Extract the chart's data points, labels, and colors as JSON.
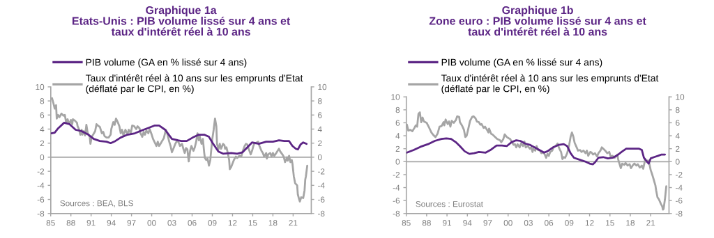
{
  "chart_data": [
    {
      "type": "line",
      "title": "Graphique 1a\nEtats-Unis : PIB volume lissé sur 4 ans et\ntaux d'intérêt réel à 10 ans",
      "annotations": [
        "Sources : BEA, BLS"
      ],
      "xlim": [
        1985,
        2023.7
      ],
      "xticks": [
        {
          "value": 1985,
          "label": "85"
        },
        {
          "value": 1988,
          "label": "88"
        },
        {
          "value": 1991,
          "label": "91"
        },
        {
          "value": 1994,
          "label": "94"
        },
        {
          "value": 1997,
          "label": "97"
        },
        {
          "value": 2000,
          "label": "00"
        },
        {
          "value": 2003,
          "label": "03"
        },
        {
          "value": 2006,
          "label": "06"
        },
        {
          "value": 2009,
          "label": "09"
        },
        {
          "value": 2012,
          "label": "12"
        },
        {
          "value": 2015,
          "label": "15"
        },
        {
          "value": 2018,
          "label": "18"
        },
        {
          "value": 2021,
          "label": "21"
        }
      ],
      "ylim": [
        -8,
        10
      ],
      "yticks": [
        -8,
        -6,
        -4,
        -2,
        0,
        2,
        4,
        6,
        8,
        10
      ],
      "y2lim": [
        -8,
        10
      ],
      "y2ticks": [
        -8,
        -6,
        -4,
        -2,
        0,
        2,
        4,
        6,
        8,
        10
      ],
      "ref_lines": [
        {
          "axis": "y",
          "value": 0,
          "color": "#a6a6a6"
        }
      ],
      "legend": "top left",
      "series": [
        {
          "name": "PIB volume (GA en % lissé sur 4 ans)",
          "color": "#5c2585",
          "x": [
            1985.1,
            1985.6,
            1986.1,
            1987.0,
            1987.8,
            1988.7,
            1989.6,
            1990.6,
            1991.4,
            1992.3,
            1993.3,
            1993.9,
            1994.6,
            1995.4,
            1996.4,
            1997.5,
            1998.5,
            1999.6,
            2000.4,
            2001.1,
            2002.0,
            2003.0,
            2004.4,
            2005.2,
            2006.1,
            2007.0,
            2007.8,
            2008.5,
            2009.0,
            2009.9,
            2010.6,
            2011.8,
            2012.7,
            2013.5,
            2014.4,
            2014.9,
            2015.9,
            2017.0,
            2018.0,
            2018.9,
            2019.7,
            2020.4,
            2020.9,
            2021.4,
            2021.7,
            2022.1,
            2022.5,
            2023.0
          ],
          "values": [
            3.4,
            3.5,
            4.1,
            4.9,
            4.7,
            3.9,
            3.7,
            3.2,
            2.6,
            2.3,
            2.2,
            2.0,
            2.3,
            2.8,
            3.2,
            3.4,
            3.8,
            4.2,
            4.5,
            4.5,
            3.9,
            2.6,
            2.3,
            2.3,
            2.8,
            3.2,
            3.2,
            2.9,
            2.1,
            0.8,
            0.5,
            0.6,
            0.5,
            0.7,
            1.6,
            2.1,
            1.9,
            2.2,
            2.2,
            2.4,
            2.3,
            2.3,
            1.6,
            1.2,
            1.1,
            1.8,
            2.1,
            1.9
          ]
        },
        {
          "name": "Taux d'intérêt réel à 10 ans sur les emprunts d'Etat\n(déflaté par le CPI, en %)",
          "color": "#a5a5a5",
          "axis": "y2",
          "x": [
            1985.1,
            1985.2,
            1985.4,
            1985.6,
            1985.8,
            1985.9,
            1986.1,
            1986.3,
            1986.6,
            1986.9,
            1987.1,
            1987.3,
            1987.5,
            1987.8,
            1988.0,
            1988.2,
            1988.3,
            1988.6,
            1988.9,
            1989.0,
            1989.2,
            1989.4,
            1989.6,
            1989.7,
            1989.9,
            1990.1,
            1990.3,
            1990.5,
            1990.8,
            1990.9,
            1991.1,
            1991.3,
            1991.6,
            1991.8,
            1992.0,
            1992.3,
            1992.6,
            1992.8,
            1993.0,
            1993.3,
            1993.6,
            1993.9,
            1994.0,
            1994.3,
            1994.5,
            1994.7,
            1995.0,
            1995.2,
            1995.4,
            1995.6,
            1995.8,
            1996.1,
            1996.4,
            1996.6,
            1996.9,
            1997.1,
            1997.4,
            1997.7,
            1997.9,
            1998.2,
            1998.3,
            1998.6,
            1998.8,
            1999.0,
            1999.2,
            1999.5,
            1999.7,
            2000.0,
            2000.2,
            2000.4,
            2000.7,
            2000.9,
            2001.1,
            2001.3,
            2001.6,
            2001.8,
            2002.0,
            2002.1,
            2002.3,
            2002.6,
            2002.8,
            2003.0,
            2003.3,
            2003.5,
            2003.8,
            2004.0,
            2004.2,
            2004.5,
            2004.7,
            2004.9,
            2005.1,
            2005.3,
            2005.5,
            2005.7,
            2005.9,
            2006.2,
            2006.4,
            2006.6,
            2006.8,
            2007.0,
            2007.1,
            2007.4,
            2007.6,
            2007.8,
            2007.9,
            2008.1,
            2008.3,
            2008.5,
            2008.7,
            2008.9,
            2009.0,
            2009.2,
            2009.4,
            2009.6,
            2009.7,
            2009.9,
            2010.1,
            2010.3,
            2010.6,
            2010.8,
            2010.9,
            2011.1,
            2011.3,
            2011.5,
            2011.6,
            2011.8,
            2012.0,
            2012.2,
            2012.5,
            2012.7,
            2013.0,
            2013.3,
            2013.5,
            2013.8,
            2014.0,
            2014.2,
            2014.4,
            2014.7,
            2014.9,
            2015.1,
            2015.2,
            2015.6,
            2015.8,
            2016.0,
            2016.3,
            2016.5,
            2016.7,
            2017.0,
            2017.1,
            2017.3,
            2017.6,
            2017.8,
            2018.0,
            2018.2,
            2018.5,
            2018.7,
            2018.9,
            2019.1,
            2019.4,
            2019.6,
            2019.8,
            2020.1,
            2020.2,
            2020.4,
            2020.6,
            2020.8,
            2020.9,
            2021.1,
            2021.3,
            2021.6,
            2021.7,
            2021.9,
            2022.0,
            2022.2,
            2022.5,
            2022.7,
            2022.8,
            2022.9,
            2023.1
          ],
          "values": [
            8.3,
            8.4,
            7.7,
            6.9,
            7.4,
            5.5,
            6.0,
            5.7,
            6.2,
            5.9,
            6.0,
            4.9,
            5.4,
            4.7,
            5.3,
            4.7,
            5.4,
            5.2,
            4.9,
            4.4,
            4.0,
            3.2,
            3.9,
            3.2,
            3.7,
            3.1,
            4.6,
            3.4,
            2.9,
            1.9,
            2.9,
            3.2,
            3.7,
            4.7,
            4.5,
            4.3,
            3.4,
            3.6,
            3.0,
            2.8,
            2.8,
            3.2,
            4.0,
            5.0,
            4.6,
            5.5,
            4.9,
            4.4,
            3.4,
            3.9,
            3.1,
            3.9,
            3.3,
            3.9,
            3.4,
            4.5,
            4.4,
            4.0,
            4.4,
            4.1,
            3.5,
            2.9,
            3.6,
            3.2,
            3.8,
            3.4,
            4.0,
            3.2,
            2.6,
            2.2,
            1.6,
            2.2,
            1.6,
            1.9,
            2.4,
            2.7,
            3.5,
            3.9,
            3.4,
            2.2,
            1.6,
            0.7,
            1.4,
            1.9,
            2.4,
            2.1,
            1.6,
            1.9,
            1.2,
            0.6,
            1.3,
            1.1,
            -0.6,
            0.9,
            1.6,
            0.9,
            1.4,
            2.2,
            3.4,
            2.4,
            3.1,
            1.9,
            2.6,
            0.6,
            -0.1,
            -0.4,
            -0.2,
            -1.2,
            -0.4,
            1.6,
            2.6,
            3.9,
            5.5,
            4.4,
            1.9,
            1.1,
            1.9,
            1.2,
            1.9,
            1.7,
            1.2,
            1.4,
            0.6,
            -0.4,
            -1.7,
            -1.4,
            -0.9,
            -0.4,
            0.1,
            -0.1,
            0.2,
            0.1,
            0.8,
            1.6,
            1.9,
            1.8,
            1.2,
            0.4,
            0.9,
            1.6,
            1.9,
            2.1,
            2.2,
            1.6,
            0.9,
            0.6,
            0.1,
            0.6,
            -0.2,
            0.4,
            0.6,
            0.1,
            0.6,
            0.2,
            0.6,
            0.9,
            1.2,
            0.8,
            0.4,
            0.1,
            -0.7,
            0.0,
            -0.5,
            0.2,
            -0.7,
            -0.4,
            -0.9,
            -2.7,
            -3.7,
            -4.0,
            -5.3,
            -6.0,
            -6.3,
            -5.7,
            -5.8,
            -4.7,
            -3.2,
            -2.7,
            -1.2
          ]
        }
      ]
    },
    {
      "type": "line",
      "title": "Graphique 1b\nZone euro : PIB volume lissé sur 4 ans et\ntaux d'intérêt réel à 10 ans",
      "annotations": [
        "Sources : Eurostat"
      ],
      "xlim": [
        1985,
        2023.7
      ],
      "xticks": [
        {
          "value": 1985,
          "label": "85"
        },
        {
          "value": 1988,
          "label": "88"
        },
        {
          "value": 1991,
          "label": "91"
        },
        {
          "value": 1994,
          "label": "94"
        },
        {
          "value": 1997,
          "label": "97"
        },
        {
          "value": 2000,
          "label": "00"
        },
        {
          "value": 2003,
          "label": "03"
        },
        {
          "value": 2006,
          "label": "06"
        },
        {
          "value": 2009,
          "label": "09"
        },
        {
          "value": 2012,
          "label": "12"
        },
        {
          "value": 2015,
          "label": "15"
        },
        {
          "value": 2018,
          "label": "18"
        },
        {
          "value": 2021,
          "label": "21"
        }
      ],
      "ylim": [
        -8,
        10
      ],
      "yticks": [
        -8,
        -6,
        -4,
        -2,
        0,
        2,
        4,
        6,
        8,
        10
      ],
      "y2lim": [
        -8,
        10
      ],
      "y2ticks": [
        -8,
        -6,
        -4,
        -2,
        0,
        2,
        4,
        6,
        8,
        10
      ],
      "ref_lines": [
        {
          "axis": "y",
          "value": 0,
          "color": "#a6a6a6"
        }
      ],
      "legend": "top left",
      "series": [
        {
          "name": "PIB volume (GA en % lissé sur 4 ans)",
          "color": "#5c2585",
          "x": [
            1985.1,
            1986.1,
            1987.1,
            1988.2,
            1989.2,
            1990.2,
            1990.9,
            1991.6,
            1992.3,
            1992.9,
            1993.6,
            1994.3,
            1995.0,
            1995.7,
            1996.7,
            1997.4,
            1998.3,
            1999.1,
            1999.8,
            2000.5,
            2001.2,
            2001.8,
            2002.5,
            2003.2,
            2003.9,
            2004.6,
            2005.3,
            2005.8,
            2006.6,
            2007.5,
            2008.2,
            2008.7,
            2009.2,
            2009.7,
            2010.8,
            2011.4,
            2012.0,
            2012.5,
            2012.8,
            2013.3,
            2014.0,
            2014.7,
            2015.4,
            2016.1,
            2016.7,
            2017.4,
            2018.3,
            2019.3,
            2019.7,
            2020.0,
            2020.3,
            2020.7,
            2021.0,
            2021.5,
            2022.1,
            2022.6,
            2023.1
          ],
          "values": [
            1.4,
            1.8,
            2.3,
            2.7,
            3.2,
            3.5,
            3.6,
            3.5,
            3.0,
            2.4,
            1.6,
            1.2,
            1.3,
            1.5,
            1.4,
            1.8,
            2.5,
            2.5,
            2.4,
            3.0,
            3.3,
            3.2,
            2.8,
            2.6,
            2.2,
            1.8,
            1.4,
            1.6,
            2.2,
            2.6,
            2.7,
            2.4,
            1.3,
            0.6,
            0.2,
            0.0,
            -0.3,
            -0.4,
            -0.1,
            0.6,
            0.7,
            0.5,
            0.6,
            1.0,
            1.5,
            2.0,
            2.0,
            2.0,
            1.8,
            0.6,
            0.2,
            -0.3,
            0.5,
            0.7,
            0.9,
            1.1,
            1.1
          ]
        },
        {
          "name": "Taux d'intérêt réel à 10 ans sur les emprunts d'Etat\n(déflaté par le CPI, en %)",
          "color": "#a5a5a5",
          "axis": "y2",
          "x": [
            1985.1,
            1985.3,
            1985.6,
            1985.9,
            1986.2,
            1986.4,
            1986.6,
            1986.8,
            1987.0,
            1987.2,
            1987.4,
            1987.6,
            1988.0,
            1988.3,
            1988.7,
            1989.0,
            1989.3,
            1989.6,
            1989.9,
            1990.2,
            1990.5,
            1990.6,
            1990.8,
            1991.1,
            1991.3,
            1991.5,
            1991.7,
            1992.0,
            1992.3,
            1992.5,
            1992.8,
            1992.9,
            1993.2,
            1993.5,
            1993.7,
            1993.9,
            1994.1,
            1994.4,
            1994.7,
            1994.9,
            1995.2,
            1995.4,
            1995.7,
            1995.9,
            1996.1,
            1996.4,
            1996.6,
            1996.9,
            1997.1,
            1997.2,
            1997.5,
            1997.7,
            1998.1,
            1998.4,
            1998.8,
            1999.0,
            1999.3,
            1999.5,
            1999.8,
            2000.1,
            2000.3,
            2000.5,
            2000.8,
            2001.0,
            2001.2,
            2001.4,
            2001.7,
            2001.9,
            2002.2,
            2002.4,
            2002.6,
            2002.9,
            2003.2,
            2003.4,
            2003.6,
            2003.7,
            2004.0,
            2004.2,
            2004.4,
            2004.7,
            2004.9,
            2005.2,
            2005.4,
            2005.6,
            2005.8,
            2006.0,
            2006.2,
            2006.5,
            2006.7,
            2007.0,
            2007.3,
            2007.4,
            2007.6,
            2007.8,
            2008.0,
            2008.2,
            2008.4,
            2008.7,
            2009.0,
            2009.2,
            2009.4,
            2009.6,
            2009.8,
            2010.1,
            2010.3,
            2010.6,
            2010.8,
            2011.1,
            2011.4,
            2011.6,
            2011.8,
            2012.1,
            2012.3,
            2012.5,
            2012.8,
            2013.1,
            2013.3,
            2013.6,
            2013.8,
            2014.1,
            2014.3,
            2014.6,
            2014.9,
            2015.1,
            2015.4,
            2015.7,
            2016.1,
            2016.2,
            2016.4,
            2016.6,
            2016.8,
            2017.1,
            2017.3,
            2017.6,
            2017.9,
            2018.1,
            2018.4,
            2018.6,
            2018.9,
            2019.1,
            2019.4,
            2019.7,
            2019.9,
            2020.2,
            2020.4,
            2020.6,
            2020.8,
            2021.0,
            2021.2,
            2021.4,
            2021.7,
            2021.8,
            2022.0,
            2022.2,
            2022.5,
            2022.7,
            2022.8,
            2022.9,
            2023.1,
            2023.3
          ],
          "values": [
            5.7,
            4.8,
            4.9,
            4.7,
            5.2,
            5.6,
            5.4,
            7.4,
            7.6,
            6.1,
            6.8,
            6.2,
            6.0,
            5.4,
            4.5,
            4.1,
            3.8,
            4.3,
            5.4,
            5.5,
            6.1,
            5.6,
            6.5,
            5.8,
            6.2,
            5.4,
            6.3,
            6.0,
            6.4,
            7.0,
            6.9,
            6.1,
            5.6,
            4.9,
            3.8,
            4.0,
            4.9,
            6.3,
            6.9,
            7.0,
            6.7,
            6.2,
            6.1,
            5.7,
            5.8,
            5.2,
            5.4,
            4.9,
            4.5,
            5.1,
            4.3,
            4.2,
            3.8,
            3.5,
            3.3,
            3.0,
            3.5,
            4.2,
            3.8,
            3.6,
            3.5,
            3.1,
            2.6,
            2.7,
            2.2,
            2.7,
            2.2,
            2.8,
            2.4,
            3.1,
            2.2,
            2.4,
            2.0,
            2.2,
            1.5,
            2.0,
            1.7,
            2.4,
            1.8,
            1.7,
            1.3,
            1.4,
            1.1,
            0.6,
            1.2,
            0.9,
            1.5,
            1.7,
            2.2,
            2.4,
            2.8,
            2.4,
            1.9,
            1.5,
            0.4,
            0.7,
            0.6,
            1.3,
            2.6,
            3.8,
            4.5,
            3.9,
            2.9,
            2.2,
            1.7,
            1.8,
            1.5,
            1.7,
            1.3,
            1.7,
            0.9,
            1.5,
            1.4,
            1.1,
            1.3,
            0.8,
            1.3,
            1.7,
            2.2,
            1.9,
            1.7,
            1.3,
            1.5,
            0.8,
            0.9,
            0.6,
            1.1,
            0.4,
            -0.3,
            -1.0,
            -0.3,
            -0.5,
            -0.2,
            -0.6,
            -0.4,
            -1.0,
            -0.5,
            -0.3,
            -0.6,
            -0.4,
            -0.9,
            -0.6,
            -1.1,
            0.4,
            0.0,
            0.2,
            -0.3,
            -1.3,
            -1.9,
            -2.6,
            -3.7,
            -4.4,
            -5.5,
            -5.8,
            -6.5,
            -6.9,
            -7.4,
            -7.3,
            -5.8,
            -3.8
          ]
        }
      ]
    }
  ]
}
